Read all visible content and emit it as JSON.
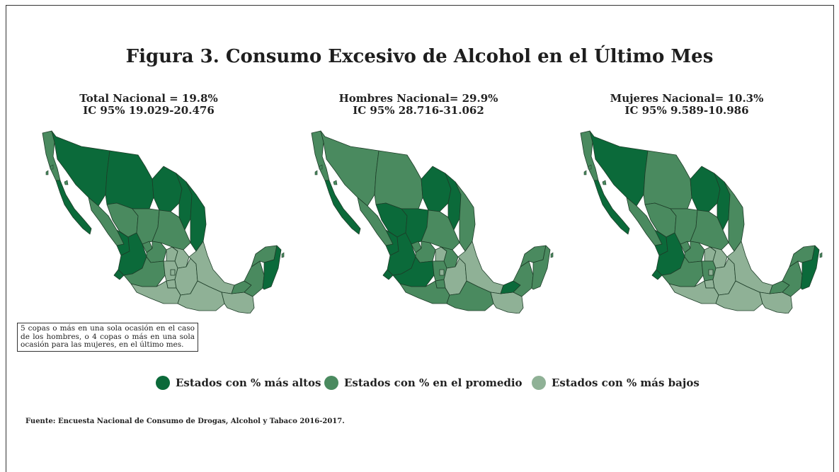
{
  "title": "Figura 3. Consumo Excesivo de Alcohol en el Último Mes",
  "colors": {
    "high": "#0b6a3a",
    "average": "#4a8a5f",
    "low": "#8fb196",
    "border": "#1d3d28"
  },
  "maps": [
    {
      "line1": "Total Nacional = 19.8%",
      "line2": "IC 95% 19.029-20.476",
      "levels": {
        "bc": "average",
        "bcs": "high",
        "son": "high",
        "chih": "high",
        "coah": "high",
        "nl": "high",
        "tamps": "high",
        "sin": "average",
        "dgo": "average",
        "zac": "average",
        "slp": "average",
        "nay": "high",
        "jal": "high",
        "ags": "average",
        "gto": "average",
        "qro": "low",
        "hgo": "low",
        "col": "high",
        "mich": "average",
        "mex": "low",
        "cdmx": "low",
        "mor": "low",
        "tlax": "low",
        "pue": "low",
        "ver": "low",
        "gro": "low",
        "oax": "low",
        "chis": "low",
        "tab": "average",
        "camp": "average",
        "yuc": "average",
        "qroo": "high"
      }
    },
    {
      "line1": "Hombres Nacional= 29.9%",
      "line2": "IC 95% 28.716-31.062",
      "levels": {
        "bc": "average",
        "bcs": "high",
        "son": "average",
        "chih": "average",
        "coah": "high",
        "nl": "high",
        "tamps": "average",
        "sin": "average",
        "dgo": "high",
        "zac": "high",
        "slp": "average",
        "nay": "high",
        "jal": "high",
        "ags": "average",
        "gto": "average",
        "qro": "low",
        "hgo": "average",
        "col": "high",
        "mich": "high",
        "mex": "average",
        "cdmx": "low",
        "mor": "average",
        "tlax": "low",
        "pue": "low",
        "ver": "low",
        "gro": "average",
        "oax": "average",
        "chis": "low",
        "tab": "high",
        "camp": "average",
        "yuc": "average",
        "qroo": "average"
      }
    },
    {
      "line1": "Mujeres Nacional= 10.3%",
      "line2": "IC 95% 9.589-10.986",
      "levels": {
        "bc": "average",
        "bcs": "high",
        "son": "high",
        "chih": "average",
        "coah": "high",
        "nl": "high",
        "tamps": "average",
        "sin": "average",
        "dgo": "average",
        "zac": "average",
        "slp": "average",
        "nay": "high",
        "jal": "high",
        "ags": "average",
        "gto": "average",
        "qro": "low",
        "hgo": "low",
        "col": "high",
        "mich": "average",
        "mex": "average",
        "cdmx": "low",
        "mor": "low",
        "tlax": "low",
        "pue": "low",
        "ver": "low",
        "gro": "low",
        "oax": "low",
        "chis": "low",
        "tab": "average",
        "camp": "average",
        "yuc": "average",
        "qroo": "high"
      }
    }
  ],
  "note": "5 copas o más en una sola ocasión en el caso de los hombres, o 4 copas o más en una sola ocasión para las mujeres, en el último mes.",
  "legend": {
    "high": "Estados con % más altos",
    "average": "Estados con % en el promedio",
    "low": "Estados con % más bajos"
  },
  "source": "Fuente: Encuesta Nacional de Consumo de Drogas, Alcohol y Tabaco 2016-2017."
}
